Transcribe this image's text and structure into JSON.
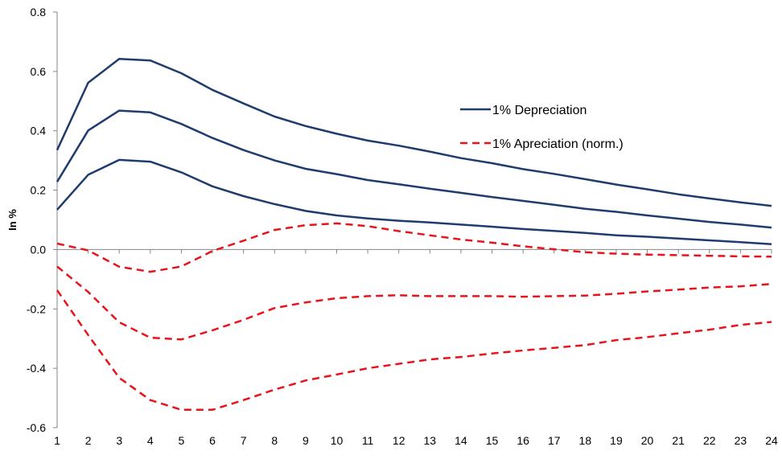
{
  "chart_data": {
    "type": "line",
    "title": "",
    "xlabel": "",
    "ylabel": "In %",
    "x": [
      1,
      2,
      3,
      4,
      5,
      6,
      7,
      8,
      9,
      10,
      11,
      12,
      13,
      14,
      15,
      16,
      17,
      18,
      19,
      20,
      21,
      22,
      23,
      24
    ],
    "ylim": [
      -0.6,
      0.8
    ],
    "yticks": [
      -0.6,
      -0.4,
      -0.2,
      0.0,
      0.2,
      0.4,
      0.6,
      0.8
    ],
    "ytick_labels": [
      "-0.6",
      "-0.4",
      "-0.2",
      "0.0",
      "0.2",
      "0.4",
      "0.6",
      "0.8"
    ],
    "grid": false,
    "legend_position": "upper-right",
    "legend": [
      {
        "label": "1% Depreciation",
        "color": "#1f3c6e",
        "style": "solid"
      },
      {
        "label": "1% Apreciation (norm.)",
        "color": "#e8141b",
        "style": "dashed"
      }
    ],
    "series": [
      {
        "group": "1% Depreciation",
        "color": "#1f3c6e",
        "style": "solid",
        "values": [
          0.335,
          0.562,
          0.642,
          0.637,
          0.594,
          0.538,
          0.492,
          0.448,
          0.416,
          0.39,
          0.367,
          0.35,
          0.33,
          0.308,
          0.291,
          0.271,
          0.255,
          0.237,
          0.219,
          0.203,
          0.186,
          0.172,
          0.159,
          0.147
        ]
      },
      {
        "group": "1% Depreciation",
        "color": "#1f3c6e",
        "style": "solid",
        "values": [
          0.228,
          0.401,
          0.468,
          0.462,
          0.423,
          0.376,
          0.335,
          0.3,
          0.272,
          0.254,
          0.234,
          0.22,
          0.205,
          0.191,
          0.177,
          0.164,
          0.151,
          0.137,
          0.127,
          0.115,
          0.104,
          0.093,
          0.084,
          0.074
        ]
      },
      {
        "group": "1% Depreciation",
        "color": "#1f3c6e",
        "style": "solid",
        "values": [
          0.134,
          0.252,
          0.302,
          0.296,
          0.26,
          0.213,
          0.18,
          0.153,
          0.13,
          0.115,
          0.105,
          0.097,
          0.091,
          0.084,
          0.077,
          0.069,
          0.063,
          0.056,
          0.048,
          0.043,
          0.037,
          0.031,
          0.025,
          0.018
        ]
      },
      {
        "group": "1% Apreciation (norm.)",
        "color": "#e8141b",
        "style": "dashed",
        "values": [
          0.02,
          -0.003,
          -0.058,
          -0.075,
          -0.057,
          -0.005,
          0.03,
          0.066,
          0.082,
          0.088,
          0.079,
          0.062,
          0.048,
          0.034,
          0.023,
          0.011,
          0.001,
          -0.009,
          -0.014,
          -0.017,
          -0.019,
          -0.021,
          -0.023,
          -0.024
        ]
      },
      {
        "group": "1% Apreciation (norm.)",
        "color": "#e8141b",
        "style": "dashed",
        "values": [
          -0.057,
          -0.143,
          -0.245,
          -0.297,
          -0.303,
          -0.272,
          -0.237,
          -0.197,
          -0.178,
          -0.164,
          -0.157,
          -0.154,
          -0.157,
          -0.157,
          -0.157,
          -0.159,
          -0.157,
          -0.155,
          -0.149,
          -0.141,
          -0.135,
          -0.128,
          -0.124,
          -0.116
        ]
      },
      {
        "group": "1% Apreciation (norm.)",
        "color": "#e8141b",
        "style": "dashed",
        "values": [
          -0.137,
          -0.288,
          -0.432,
          -0.507,
          -0.54,
          -0.54,
          -0.507,
          -0.472,
          -0.441,
          -0.421,
          -0.4,
          -0.385,
          -0.37,
          -0.362,
          -0.35,
          -0.34,
          -0.331,
          -0.322,
          -0.305,
          -0.295,
          -0.282,
          -0.27,
          -0.254,
          -0.244
        ]
      }
    ]
  }
}
